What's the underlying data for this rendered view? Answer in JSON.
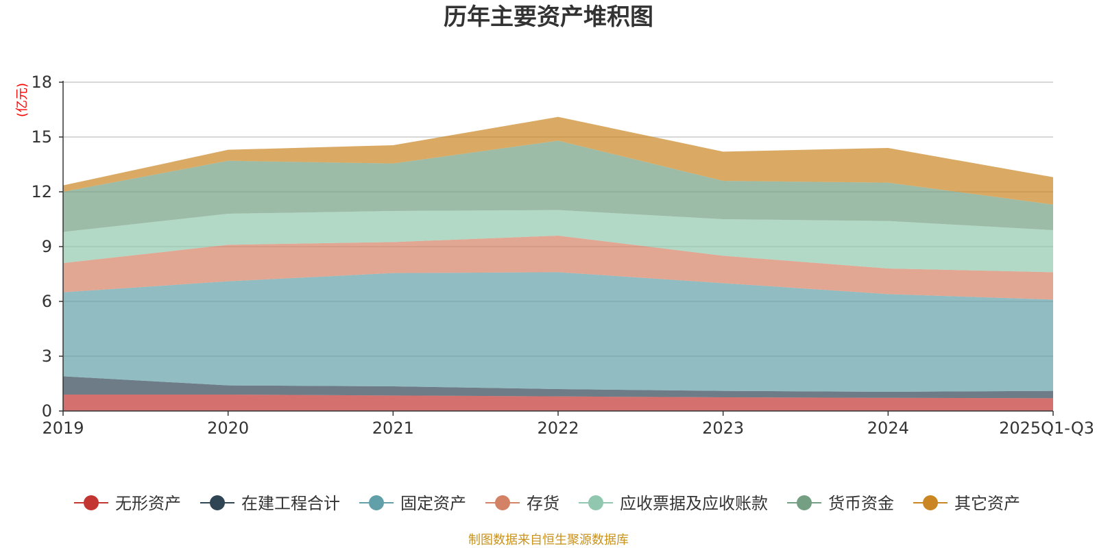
{
  "chart_data": {
    "type": "area",
    "stacked": true,
    "title": "历年主要资产堆积图",
    "ylabel": "(亿元)",
    "ylim": [
      0,
      18
    ],
    "yticks": [
      0,
      3,
      6,
      9,
      12,
      15,
      18
    ],
    "categories": [
      "2019",
      "2020",
      "2021",
      "2022",
      "2023",
      "2024",
      "2025Q1-Q3"
    ],
    "series": [
      {
        "name": "无形资产",
        "color": "#c23531",
        "values": [
          0.9,
          0.9,
          0.85,
          0.8,
          0.75,
          0.72,
          0.7
        ]
      },
      {
        "name": "在建工程合计",
        "color": "#2f4554",
        "values": [
          1.0,
          0.5,
          0.5,
          0.4,
          0.35,
          0.33,
          0.4
        ]
      },
      {
        "name": "固定资产",
        "color": "#61a0a8",
        "values": [
          4.6,
          5.7,
          6.2,
          6.4,
          5.9,
          5.35,
          5.0
        ]
      },
      {
        "name": "存货",
        "color": "#d48265",
        "values": [
          1.6,
          2.0,
          1.7,
          2.0,
          1.5,
          1.4,
          1.5
        ]
      },
      {
        "name": "应收票据及应收账款",
        "color": "#91c7ae",
        "values": [
          1.7,
          1.7,
          1.7,
          1.4,
          2.0,
          2.6,
          2.3
        ]
      },
      {
        "name": "货币资金",
        "color": "#749f83",
        "values": [
          2.2,
          2.9,
          2.6,
          3.8,
          2.1,
          2.1,
          1.4
        ]
      },
      {
        "name": "其它资产",
        "color": "#ca8622",
        "values": [
          0.35,
          0.6,
          1.0,
          1.3,
          1.6,
          1.9,
          1.5
        ]
      }
    ],
    "grid": true,
    "legend_position": "bottom"
  },
  "source_note": "制图数据来自恒生聚源数据库"
}
